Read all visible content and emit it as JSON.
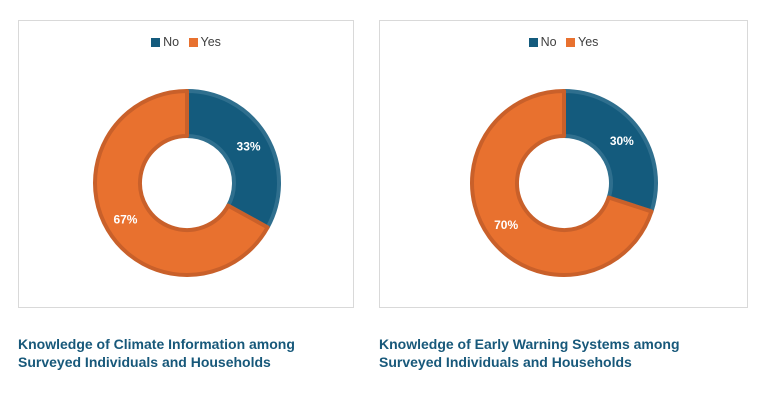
{
  "colors": {
    "no": "#145b7d",
    "yes": "#e8712f",
    "no_edge": "#2f6f8e",
    "yes_edge": "#c9602a"
  },
  "chart_data": [
    {
      "type": "pie",
      "donut": true,
      "legend": "top-center",
      "categories": [
        "No",
        "Yes"
      ],
      "values": [
        33,
        67
      ],
      "labels": [
        "33%",
        "67%"
      ],
      "caption": [
        "Knowledge of Climate Information among",
        "Surveyed Individuals and Households"
      ]
    },
    {
      "type": "pie",
      "donut": true,
      "legend": "top-center",
      "categories": [
        "No",
        "Yes"
      ],
      "values": [
        30,
        70
      ],
      "labels": [
        "30%",
        "70%"
      ],
      "caption": [
        "Knowledge of Early Warning Systems among",
        "Surveyed Individuals and Households"
      ]
    }
  ]
}
